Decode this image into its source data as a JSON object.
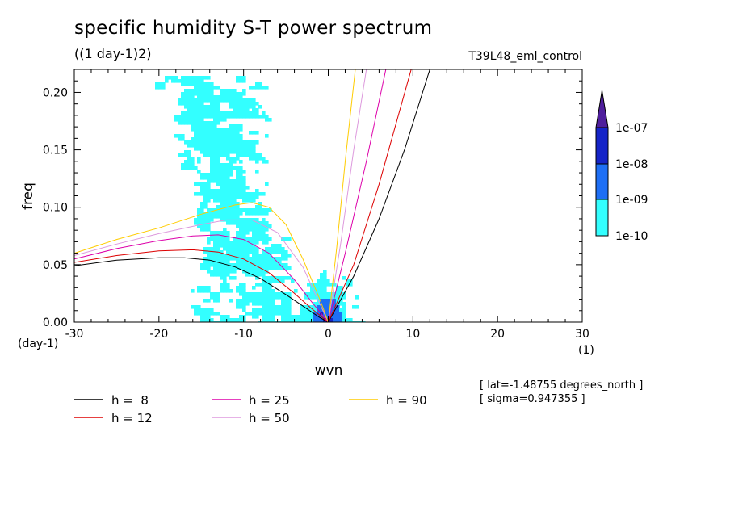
{
  "header": {
    "title": "specific humidity S-T power spectrum",
    "units": "((1 day-1)2)",
    "run": "T39L48_eml_control"
  },
  "info": {
    "lat": "[ lat=-1.48755 degrees_north ]",
    "sigma": "[ sigma=0.947355 ]"
  },
  "chart_data": {
    "type": "heatmap",
    "title": "specific humidity S-T power spectrum",
    "subtitle": "((1 day-1)2)",
    "xlabel": "wvn",
    "ylabel": "freq",
    "x_unit_label": "(1)",
    "y_unit_label": "(day-1)",
    "xlim": [
      -30,
      30
    ],
    "ylim": [
      0,
      0.22
    ],
    "x_ticks": [
      -30,
      -20,
      -10,
      0,
      10,
      20,
      30
    ],
    "x_tick_labels": [
      "-30",
      "-20",
      "-10",
      "0",
      "10",
      "20",
      "30"
    ],
    "y_ticks": [
      0,
      0.05,
      0.1,
      0.15,
      0.2
    ],
    "y_tick_labels": [
      "0.00",
      "0.05",
      "0.10",
      "0.15",
      "0.20"
    ],
    "colorbar": {
      "levels": [
        "1e-10",
        "1e-09",
        "1e-08",
        "1e-07"
      ],
      "colors": [
        "#33ffff",
        "#1e6ff5",
        "#1524c8",
        "#4f1e9c"
      ]
    },
    "contour_colors": {
      "low": "#33ffff",
      "mid": "#1e6ff5",
      "high": "#1524c8",
      "max": "#4f1e9c"
    },
    "series": [
      {
        "name": "h =  8",
        "color": "#000000",
        "left": {
          "x": [
            -30,
            -25,
            -20,
            -17,
            -14,
            -11,
            -8,
            -5,
            -3,
            -1,
            0
          ],
          "y": [
            0.049,
            0.054,
            0.056,
            0.056,
            0.054,
            0.048,
            0.038,
            0.024,
            0.014,
            0.004,
            0
          ]
        },
        "right": {
          "x": [
            0,
            3,
            6,
            9,
            12
          ],
          "y": [
            0,
            0.04,
            0.09,
            0.15,
            0.22
          ]
        }
      },
      {
        "name": "h = 12",
        "color": "#dd0000",
        "left": {
          "x": [
            -30,
            -25,
            -20,
            -16,
            -13,
            -10,
            -7,
            -4,
            -2,
            0
          ],
          "y": [
            0.052,
            0.058,
            0.062,
            0.063,
            0.061,
            0.055,
            0.043,
            0.025,
            0.012,
            0
          ]
        },
        "right": {
          "x": [
            0,
            3,
            6,
            9.8
          ],
          "y": [
            0,
            0.05,
            0.12,
            0.22
          ]
        }
      },
      {
        "name": "h = 25",
        "color": "#dd00aa",
        "left": {
          "x": [
            -30,
            -25,
            -20,
            -16,
            -13,
            -10,
            -7,
            -4,
            -2,
            0
          ],
          "y": [
            0.055,
            0.064,
            0.071,
            0.075,
            0.076,
            0.072,
            0.06,
            0.037,
            0.018,
            0
          ]
        },
        "right": {
          "x": [
            0,
            2,
            4.5,
            6.8
          ],
          "y": [
            0,
            0.06,
            0.14,
            0.22
          ]
        }
      },
      {
        "name": "h = 50",
        "color": "#dd99dd",
        "left": {
          "x": [
            -30,
            -25,
            -20,
            -15,
            -12,
            -9,
            -6,
            -3,
            0
          ],
          "y": [
            0.058,
            0.068,
            0.077,
            0.085,
            0.089,
            0.089,
            0.078,
            0.048,
            0
          ]
        },
        "right": {
          "x": [
            0,
            1.5,
            3,
            4.5
          ],
          "y": [
            0,
            0.07,
            0.15,
            0.22
          ]
        }
      },
      {
        "name": "h = 90",
        "color": "#ffcc00",
        "left": {
          "x": [
            -30,
            -25,
            -20,
            -15,
            -11,
            -9,
            -7,
            -5,
            -3,
            -1,
            0
          ],
          "y": [
            0.06,
            0.072,
            0.082,
            0.094,
            0.102,
            0.104,
            0.1,
            0.085,
            0.055,
            0.02,
            0
          ]
        },
        "right": {
          "x": [
            0,
            1,
            2,
            3.2
          ],
          "y": [
            0,
            0.065,
            0.14,
            0.22
          ]
        }
      }
    ]
  },
  "legend": {
    "items": [
      {
        "label": "h =  8",
        "color": "#000000"
      },
      {
        "label": "h = 12",
        "color": "#dd0000"
      },
      {
        "label": "h = 25",
        "color": "#dd00aa"
      },
      {
        "label": "h = 50",
        "color": "#dd99dd"
      },
      {
        "label": "h = 90",
        "color": "#ffcc00"
      }
    ]
  }
}
